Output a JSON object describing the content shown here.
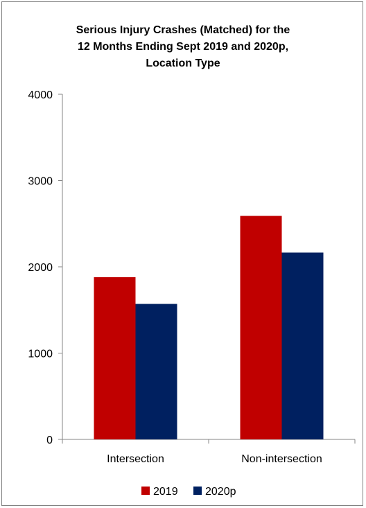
{
  "chart_data": {
    "type": "bar",
    "title_lines": [
      "Serious Injury Crashes (Matched) for the",
      "12 Months Ending Sept 2019 and 2020p,",
      "Location Type"
    ],
    "categories": [
      "Intersection",
      "Non-intersection"
    ],
    "series": [
      {
        "name": "2019",
        "color": "#c00000",
        "values": [
          1880,
          2590
        ]
      },
      {
        "name": "2020p",
        "color": "#002060",
        "values": [
          1570,
          2165
        ]
      }
    ],
    "y_ticks": [
      "0",
      "1000",
      "2000",
      "3000",
      "4000"
    ],
    "ylim": [
      0,
      4000
    ],
    "grid": false,
    "legend_position": "bottom"
  }
}
